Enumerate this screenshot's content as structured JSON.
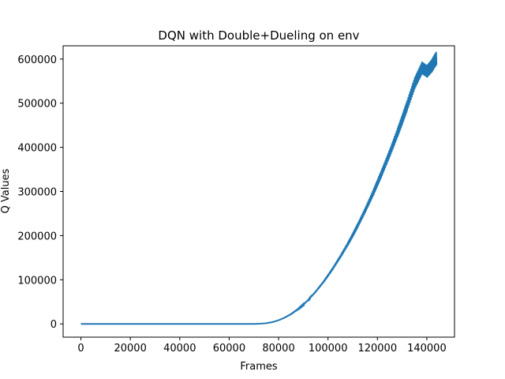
{
  "chart_data": {
    "type": "line",
    "title": "DQN with Double+Dueling on env",
    "xlabel": "Frames",
    "ylabel": "Q Values",
    "xlim": [
      -7200,
      151200
    ],
    "ylim": [
      -30000,
      630000
    ],
    "xticks": [
      0,
      20000,
      40000,
      60000,
      80000,
      100000,
      120000,
      140000
    ],
    "yticks": [
      0,
      100000,
      200000,
      300000,
      400000,
      500000,
      600000
    ],
    "xtick_labels": [
      "0",
      "20000",
      "40000",
      "60000",
      "80000",
      "100000",
      "120000",
      "140000"
    ],
    "ytick_labels": [
      "0",
      "100000",
      "200000",
      "300000",
      "400000",
      "500000",
      "600000"
    ],
    "grid": false,
    "series": [
      {
        "color": "#1f77b4",
        "x": [
          0,
          20000,
          40000,
          60000,
          70000,
          72000,
          75000,
          78000,
          80000,
          82000,
          85000,
          88000,
          90000,
          92000,
          95000,
          98000,
          100000,
          102000,
          105000,
          108000,
          110000,
          112000,
          115000,
          118000,
          120000,
          122000,
          125000,
          128000,
          130000,
          132000,
          135000,
          138000,
          140000,
          142000,
          143000,
          144000
        ],
        "y": [
          0,
          0,
          0,
          0,
          0,
          300,
          1500,
          4700,
          8300,
          13000,
          22200,
          34200,
          43800,
          54500,
          73200,
          94300,
          110000,
          126500,
          153000,
          181500,
          202000,
          223500,
          257500,
          294000,
          320000,
          346500,
          388000,
          432000,
          463000,
          495000,
          545000,
          580000,
          572000,
          585000,
          595000,
          603000
        ]
      }
    ]
  }
}
